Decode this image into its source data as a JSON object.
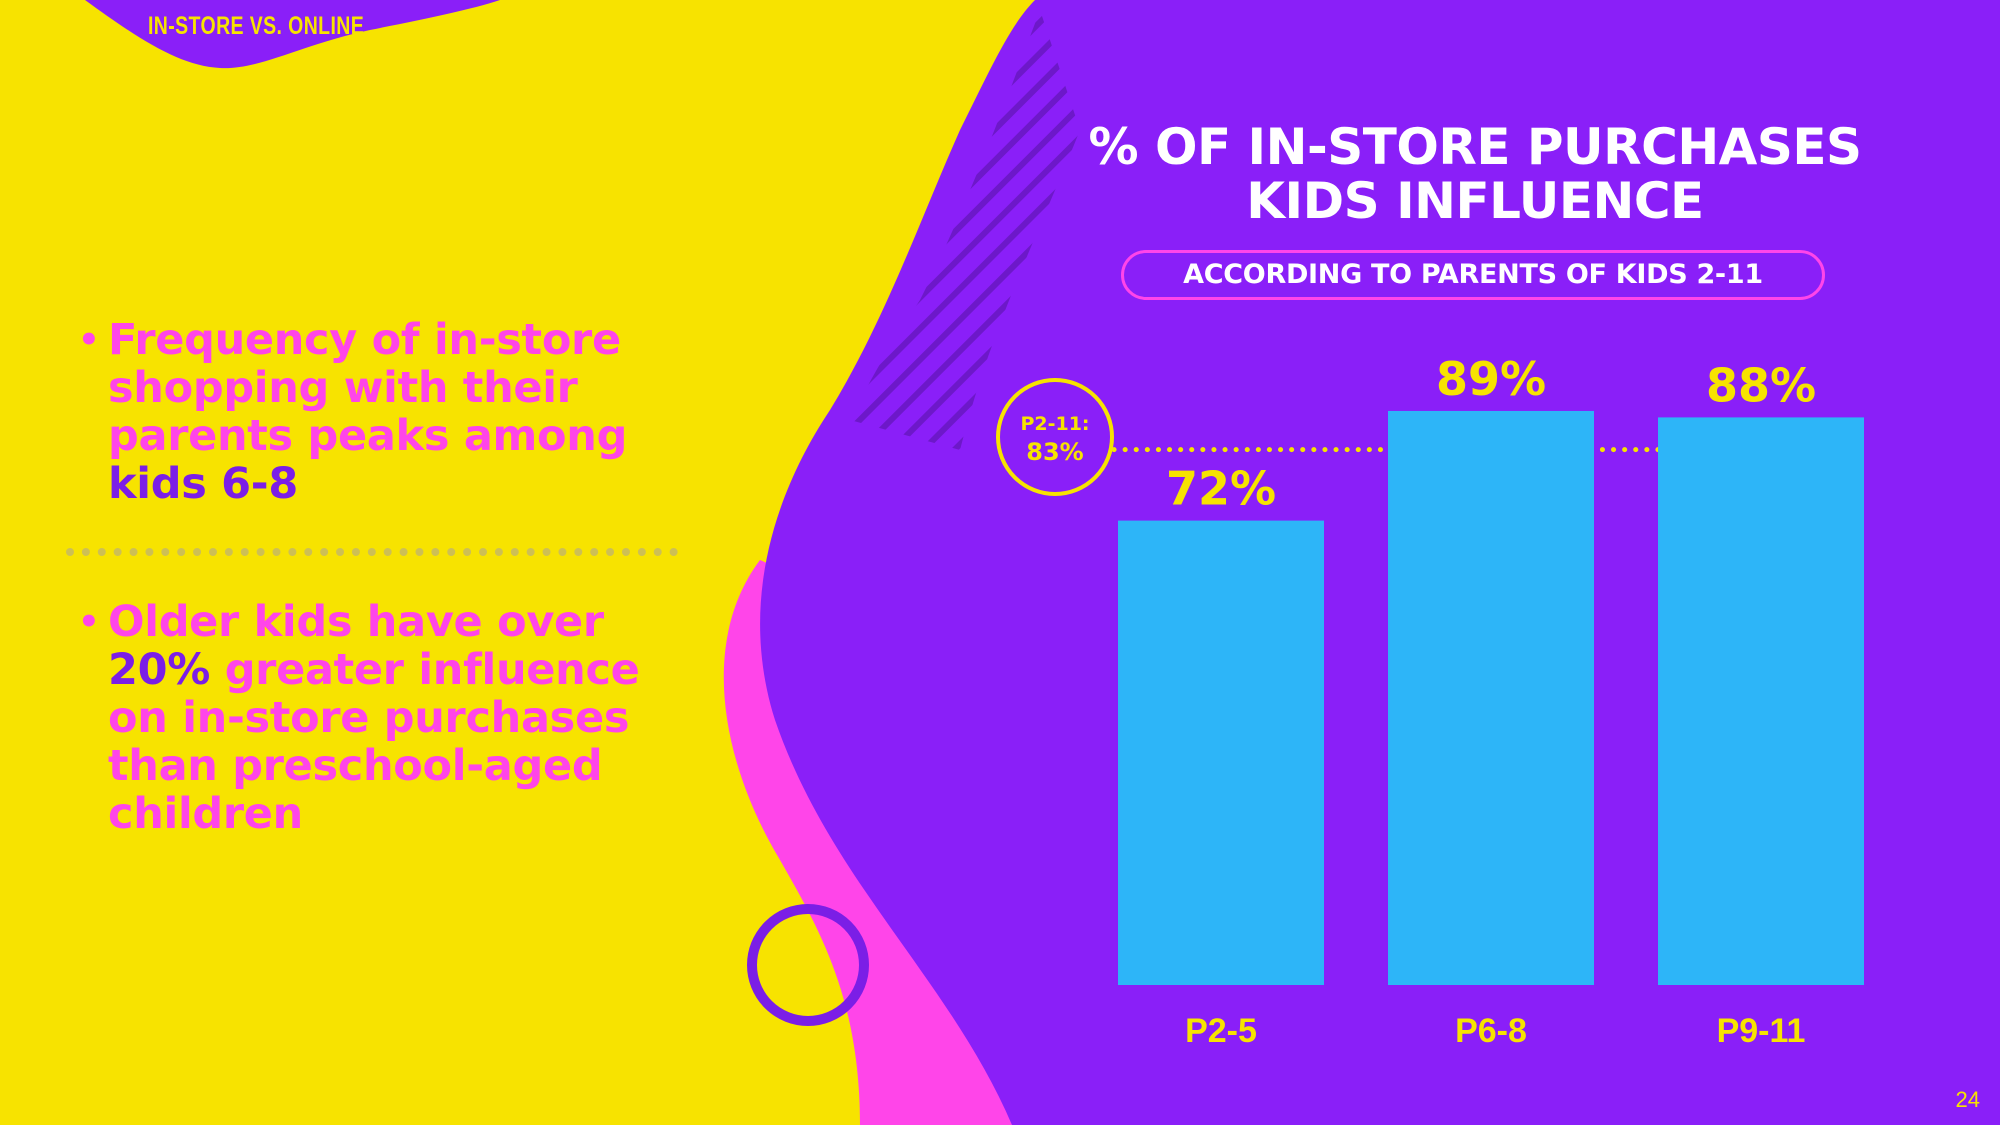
{
  "section_tag": "IN-STORE VS. ONLINE",
  "bullets": [
    {
      "parts": [
        "Frequency of in-store shopping with their parents peaks among ",
        "kids 6-8",
        ""
      ]
    },
    {
      "parts": [
        "Older kids have over ",
        "20%",
        " greater influence on in-store purchases than preschool-aged children"
      ]
    }
  ],
  "chart_data": {
    "type": "bar",
    "title": "% OF IN-STORE PURCHASES KIDS INFLUENCE",
    "subtitle": "ACCORDING TO PARENTS OF KIDS 2-11",
    "categories": [
      "P2-5",
      "P6-8",
      "P9-11"
    ],
    "values": [
      72,
      89,
      88
    ],
    "value_labels": [
      "72%",
      "89%",
      "88%"
    ],
    "ylim": [
      0,
      100
    ],
    "grid": false,
    "reference_line": {
      "value": 83,
      "label_line1": "P2-11:",
      "label_line2": "83%"
    },
    "colors": {
      "bar": "#2db5f8",
      "label": "#f7e300",
      "reference": "#f7e300"
    }
  },
  "page_number": "24",
  "colors": {
    "yellow": "#f7e300",
    "purple": "#8a1ff8",
    "pink": "#ff45e9",
    "blue": "#2db5f8"
  }
}
